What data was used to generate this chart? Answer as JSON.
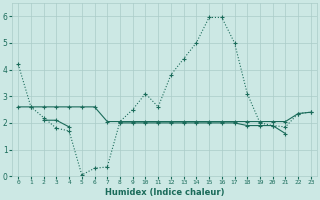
{
  "xlabel": "Humidex (Indice chaleur)",
  "x": [
    0,
    1,
    2,
    3,
    4,
    5,
    6,
    7,
    8,
    9,
    10,
    11,
    12,
    13,
    14,
    15,
    16,
    17,
    18,
    19,
    20,
    21,
    22,
    23
  ],
  "line1": [
    4.2,
    2.6,
    2.2,
    1.8,
    1.7,
    0.05,
    0.3,
    0.35,
    2.05,
    2.5,
    3.1,
    2.6,
    3.8,
    4.4,
    5.0,
    5.95,
    5.95,
    5.0,
    3.1,
    2.0,
    1.9,
    1.85,
    2.35,
    2.4
  ],
  "line2": [
    2.6,
    2.6,
    2.6,
    2.6,
    2.6,
    2.6,
    2.6,
    2.05,
    2.05,
    2.05,
    2.05,
    2.05,
    2.05,
    2.05,
    2.05,
    2.05,
    2.05,
    2.05,
    2.05,
    2.05,
    2.05,
    2.05,
    2.35,
    2.4
  ],
  "line3": [
    null,
    null,
    2.1,
    2.1,
    1.85,
    null,
    null,
    null,
    2.0,
    2.0,
    2.0,
    2.0,
    2.0,
    2.0,
    2.0,
    2.0,
    2.0,
    2.0,
    1.9,
    1.9,
    1.9,
    1.6,
    null,
    null
  ],
  "color": "#1a6b5a",
  "bg_color": "#cce8e4",
  "grid_color": "#aaccc8",
  "ylim": [
    0,
    6.5
  ],
  "xlim": [
    -0.5,
    23.5
  ],
  "yticks": [
    0,
    1,
    2,
    3,
    4,
    5,
    6
  ],
  "xtick_fontsize": 4.5,
  "ytick_fontsize": 5.5,
  "xlabel_fontsize": 6.0
}
